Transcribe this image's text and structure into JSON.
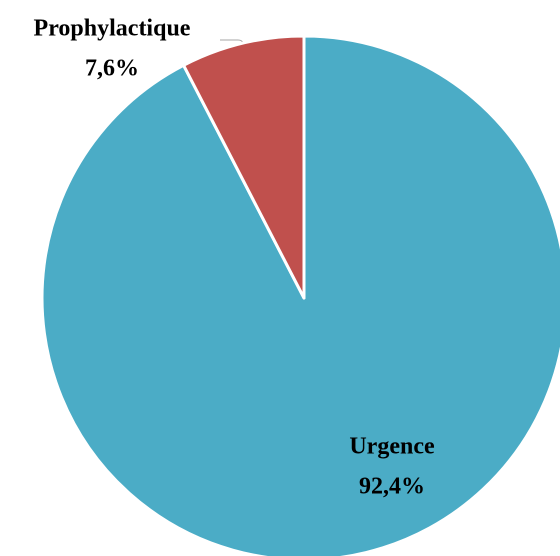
{
  "chart_data": {
    "type": "pie",
    "categories": [
      "Urgence",
      "Prophylactique"
    ],
    "values": [
      92.4,
      7.6
    ],
    "value_labels": [
      "92,4%",
      "7,6%"
    ],
    "colors": [
      "#4bacc6",
      "#c0504d"
    ]
  }
}
